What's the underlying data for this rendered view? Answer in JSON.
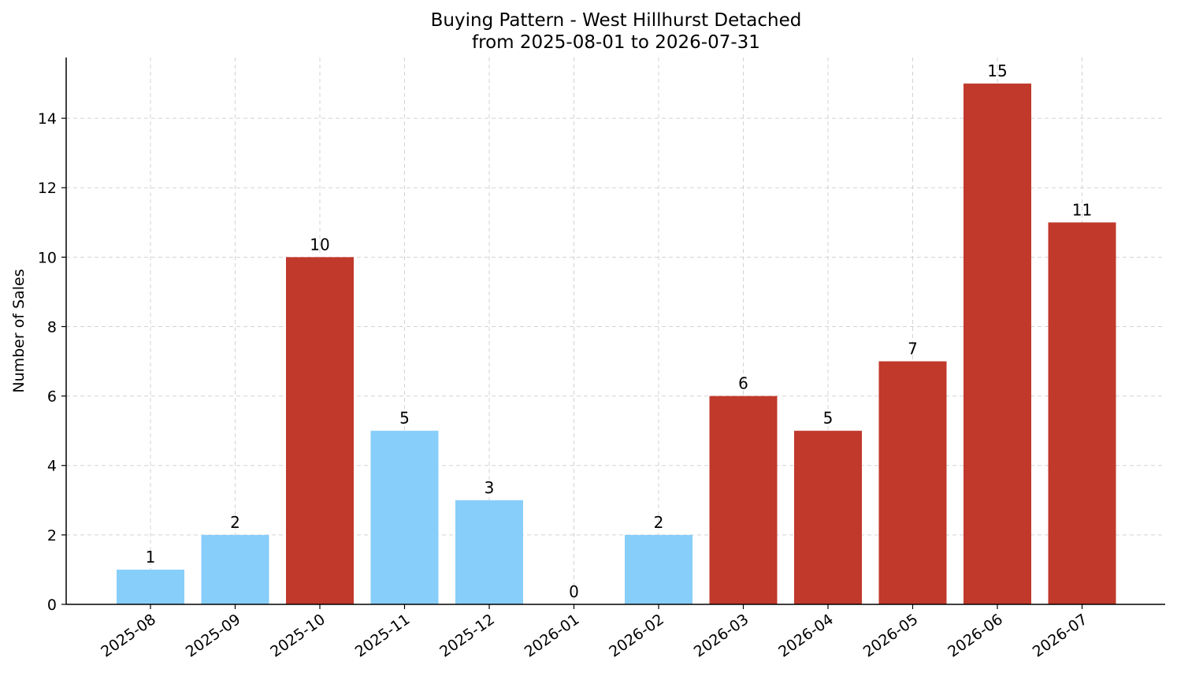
{
  "chart_data": {
    "type": "bar",
    "title_line1": "Buying Pattern - West Hillhurst Detached",
    "title_line2": "from 2025-08-01 to 2026-07-31",
    "xlabel": "",
    "ylabel": "Number of Sales",
    "categories": [
      "2025-08",
      "2025-09",
      "2025-10",
      "2025-11",
      "2025-12",
      "2026-01",
      "2026-02",
      "2026-03",
      "2026-04",
      "2026-05",
      "2026-06",
      "2026-07"
    ],
    "values": [
      1,
      2,
      10,
      5,
      3,
      0,
      2,
      6,
      5,
      7,
      15,
      11
    ],
    "bar_colors": [
      "#87CEFA",
      "#87CEFA",
      "#C0392B",
      "#87CEFA",
      "#87CEFA",
      "#87CEFA",
      "#87CEFA",
      "#C0392B",
      "#C0392B",
      "#C0392B",
      "#C0392B",
      "#C0392B"
    ],
    "ylim": [
      0,
      15.75
    ],
    "yticks": [
      0,
      2,
      4,
      6,
      8,
      10,
      12,
      14
    ],
    "grid": true
  }
}
